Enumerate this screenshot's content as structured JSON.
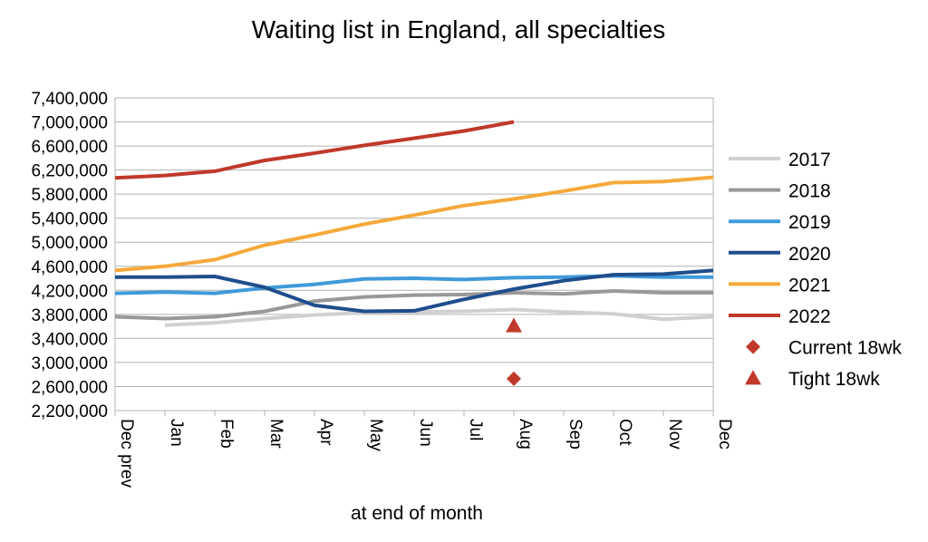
{
  "chart_data": {
    "type": "line",
    "title": "Waiting list in England, all specialties",
    "xlabel": "at end of month",
    "ylabel": "",
    "categories": [
      "Dec prev",
      "Jan",
      "Feb",
      "Mar",
      "Apr",
      "May",
      "Jun",
      "Jul",
      "Aug",
      "Sep",
      "Oct",
      "Nov",
      "Dec"
    ],
    "ylim": [
      2200000,
      7400000
    ],
    "yticks": [
      {
        "value": 2200000,
        "label": "2,200,000"
      },
      {
        "value": 2600000,
        "label": "2,600,000"
      },
      {
        "value": 3000000,
        "label": "3,000,000"
      },
      {
        "value": 3400000,
        "label": "3,400,000"
      },
      {
        "value": 3800000,
        "label": "3,800,000"
      },
      {
        "value": 4200000,
        "label": "4,200,000"
      },
      {
        "value": 4600000,
        "label": "4,600,000"
      },
      {
        "value": 5000000,
        "label": "5,000,000"
      },
      {
        "value": 5400000,
        "label": "5,400,000"
      },
      {
        "value": 5800000,
        "label": "5,800,000"
      },
      {
        "value": 6200000,
        "label": "6,200,000"
      },
      {
        "value": 6600000,
        "label": "6,600,000"
      },
      {
        "value": 7000000,
        "label": "7,000,000"
      },
      {
        "value": 7400000,
        "label": "7,400,000"
      }
    ],
    "grid": true,
    "legend_position": "right",
    "series": [
      {
        "name": "2017",
        "color": "#d0d0d0",
        "marker": "line",
        "values": [
          null,
          3620000,
          3660000,
          3730000,
          3790000,
          3830000,
          3840000,
          3850000,
          3880000,
          3840000,
          3810000,
          3720000,
          3760000
        ]
      },
      {
        "name": "2018",
        "color": "#999999",
        "marker": "line",
        "values": [
          3760000,
          3730000,
          3760000,
          3850000,
          4020000,
          4090000,
          4120000,
          4130000,
          4160000,
          4140000,
          4190000,
          4160000,
          4160000
        ]
      },
      {
        "name": "2019",
        "color": "#3f9ad9",
        "marker": "line",
        "values": [
          4150000,
          4170000,
          4150000,
          4240000,
          4300000,
          4390000,
          4400000,
          4380000,
          4410000,
          4420000,
          4440000,
          4420000,
          4420000
        ]
      },
      {
        "name": "2020",
        "color": "#1f4e8c",
        "marker": "line",
        "values": [
          4420000,
          4420000,
          4430000,
          4250000,
          3950000,
          3850000,
          3860000,
          4050000,
          4220000,
          4360000,
          4460000,
          4470000,
          4530000
        ]
      },
      {
        "name": "2021",
        "color": "#f5a93b",
        "marker": "line",
        "values": [
          4530000,
          4600000,
          4710000,
          4950000,
          5120000,
          5300000,
          5450000,
          5610000,
          5720000,
          5850000,
          5990000,
          6010000,
          6080000
        ]
      },
      {
        "name": "2022",
        "color": "#c0392b",
        "marker": "line",
        "values": [
          6070000,
          6110000,
          6180000,
          6360000,
          6480000,
          6610000,
          6730000,
          6850000,
          7000000,
          null,
          null,
          null,
          null
        ]
      },
      {
        "name": "Current 18wk",
        "color": "#c0392b",
        "marker": "diamond",
        "points": [
          {
            "x": "Aug",
            "y": 2730000
          }
        ]
      },
      {
        "name": "Tight 18wk",
        "color": "#c0392b",
        "marker": "triangle",
        "points": [
          {
            "x": "Aug",
            "y": 3610000
          }
        ]
      }
    ]
  }
}
